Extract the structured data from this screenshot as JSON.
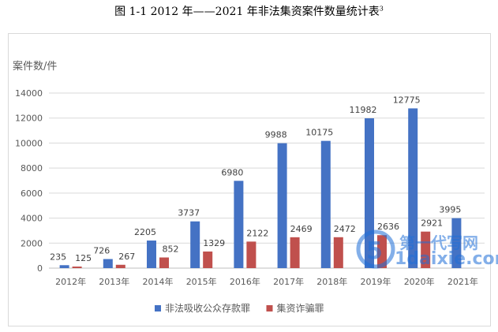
{
  "caption": {
    "text": "图 1-1    2012 年——2021 年非法集资案件数量统计表",
    "footnote_marker": "3"
  },
  "watermark": {
    "text": "第一代写网",
    "url": "1daixie.com"
  },
  "chart_data": {
    "type": "bar",
    "title": "",
    "ylabel": "案件数/件",
    "xlabel": "",
    "categories": [
      "2012年",
      "2013年",
      "2014年",
      "2015年",
      "2016年",
      "2017年",
      "2018年",
      "2019年",
      "2020年",
      "2021年"
    ],
    "ylim": [
      0,
      14000
    ],
    "yticks": [
      0,
      2000,
      4000,
      6000,
      8000,
      10000,
      12000,
      14000
    ],
    "grid": "horizontal",
    "legend": "bottom",
    "series": [
      {
        "name": "非法吸收公众存款罪",
        "color": "#4472c4",
        "values": [
          235,
          726,
          2205,
          3737,
          6980,
          9988,
          10175,
          11982,
          12775,
          3995
        ]
      },
      {
        "name": "集资诈骗罪",
        "color": "#c0504d",
        "values": [
          125,
          267,
          852,
          1329,
          2122,
          2469,
          2472,
          2636,
          2921,
          0
        ]
      }
    ]
  }
}
